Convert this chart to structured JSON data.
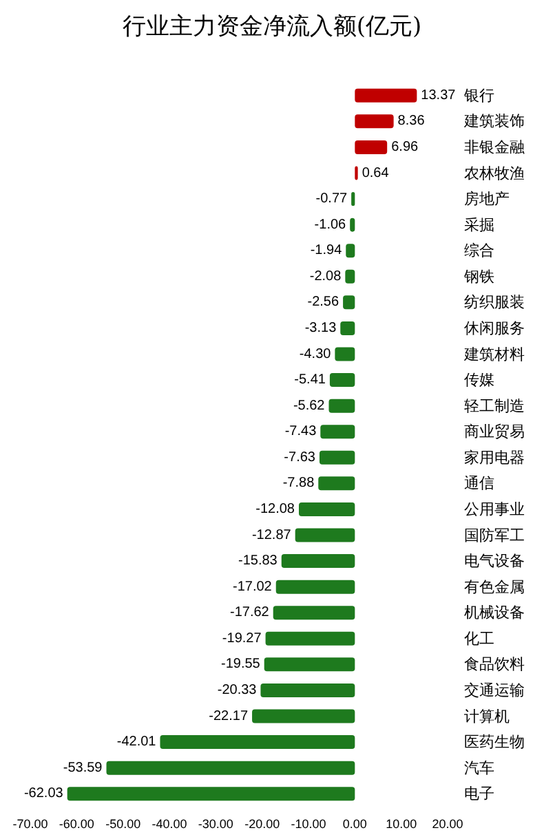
{
  "chart_data": {
    "type": "bar",
    "orientation": "horizontal",
    "title": "行业主力资金净流入额(亿元)",
    "categories": [
      "银行",
      "建筑装饰",
      "非银金融",
      "农林牧渔",
      "房地产",
      "采掘",
      "综合",
      "钢铁",
      "纺织服装",
      "休闲服务",
      "建筑材料",
      "传媒",
      "轻工制造",
      "商业贸易",
      "家用电器",
      "通信",
      "公用事业",
      "国防军工",
      "电气设备",
      "有色金属",
      "机械设备",
      "化工",
      "食品饮料",
      "交通运输",
      "计算机",
      "医药生物",
      "汽车",
      "电子"
    ],
    "values": [
      13.37,
      8.36,
      6.96,
      0.64,
      -0.77,
      -1.06,
      -1.94,
      -2.08,
      -2.56,
      -3.13,
      -4.3,
      -5.41,
      -5.62,
      -7.43,
      -7.63,
      -7.88,
      -12.08,
      -12.87,
      -15.83,
      -17.02,
      -17.62,
      -19.27,
      -19.55,
      -20.33,
      -22.17,
      -42.01,
      -53.59,
      -62.03
    ],
    "value_labels": [
      "13.37",
      "8.36",
      "6.96",
      "0.64",
      "-0.77",
      "-1.06",
      "-1.94",
      "-2.08",
      "-2.56",
      "-3.13",
      "-4.30",
      "-5.41",
      "-5.62",
      "-7.43",
      "-7.63",
      "-7.88",
      "-12.08",
      "-12.87",
      "-15.83",
      "-17.02",
      "-17.62",
      "-19.27",
      "-19.55",
      "-20.33",
      "-22.17",
      "-42.01",
      "-53.59",
      "-62.03"
    ],
    "colors": [
      "#c00000",
      "#c00000",
      "#c00000",
      "#c00000",
      "#1e7a1e",
      "#1e7a1e",
      "#1e7a1e",
      "#1e7a1e",
      "#1e7a1e",
      "#1e7a1e",
      "#1e7a1e",
      "#1e7a1e",
      "#1e7a1e",
      "#1e7a1e",
      "#1e7a1e",
      "#1e7a1e",
      "#1e7a1e",
      "#1e7a1e",
      "#1e7a1e",
      "#1e7a1e",
      "#1e7a1e",
      "#1e7a1e",
      "#1e7a1e",
      "#1e7a1e",
      "#1e7a1e",
      "#1e7a1e",
      "#1e7a1e",
      "#1e7a1e"
    ],
    "xlim": [
      -70,
      20
    ],
    "xticks": [
      {
        "value": -70,
        "label": "-70.00"
      },
      {
        "value": -60,
        "label": "-60.00"
      },
      {
        "value": -50,
        "label": "-50.00"
      },
      {
        "value": -40,
        "label": "-40.00"
      },
      {
        "value": -30,
        "label": "-30.00"
      },
      {
        "value": -20,
        "label": "-20.00"
      },
      {
        "value": -10,
        "label": "-10.00"
      },
      {
        "value": 0,
        "label": "0.00"
      },
      {
        "value": 10,
        "label": "10.00"
      },
      {
        "value": 20,
        "label": "20.00"
      }
    ],
    "grid": false
  }
}
